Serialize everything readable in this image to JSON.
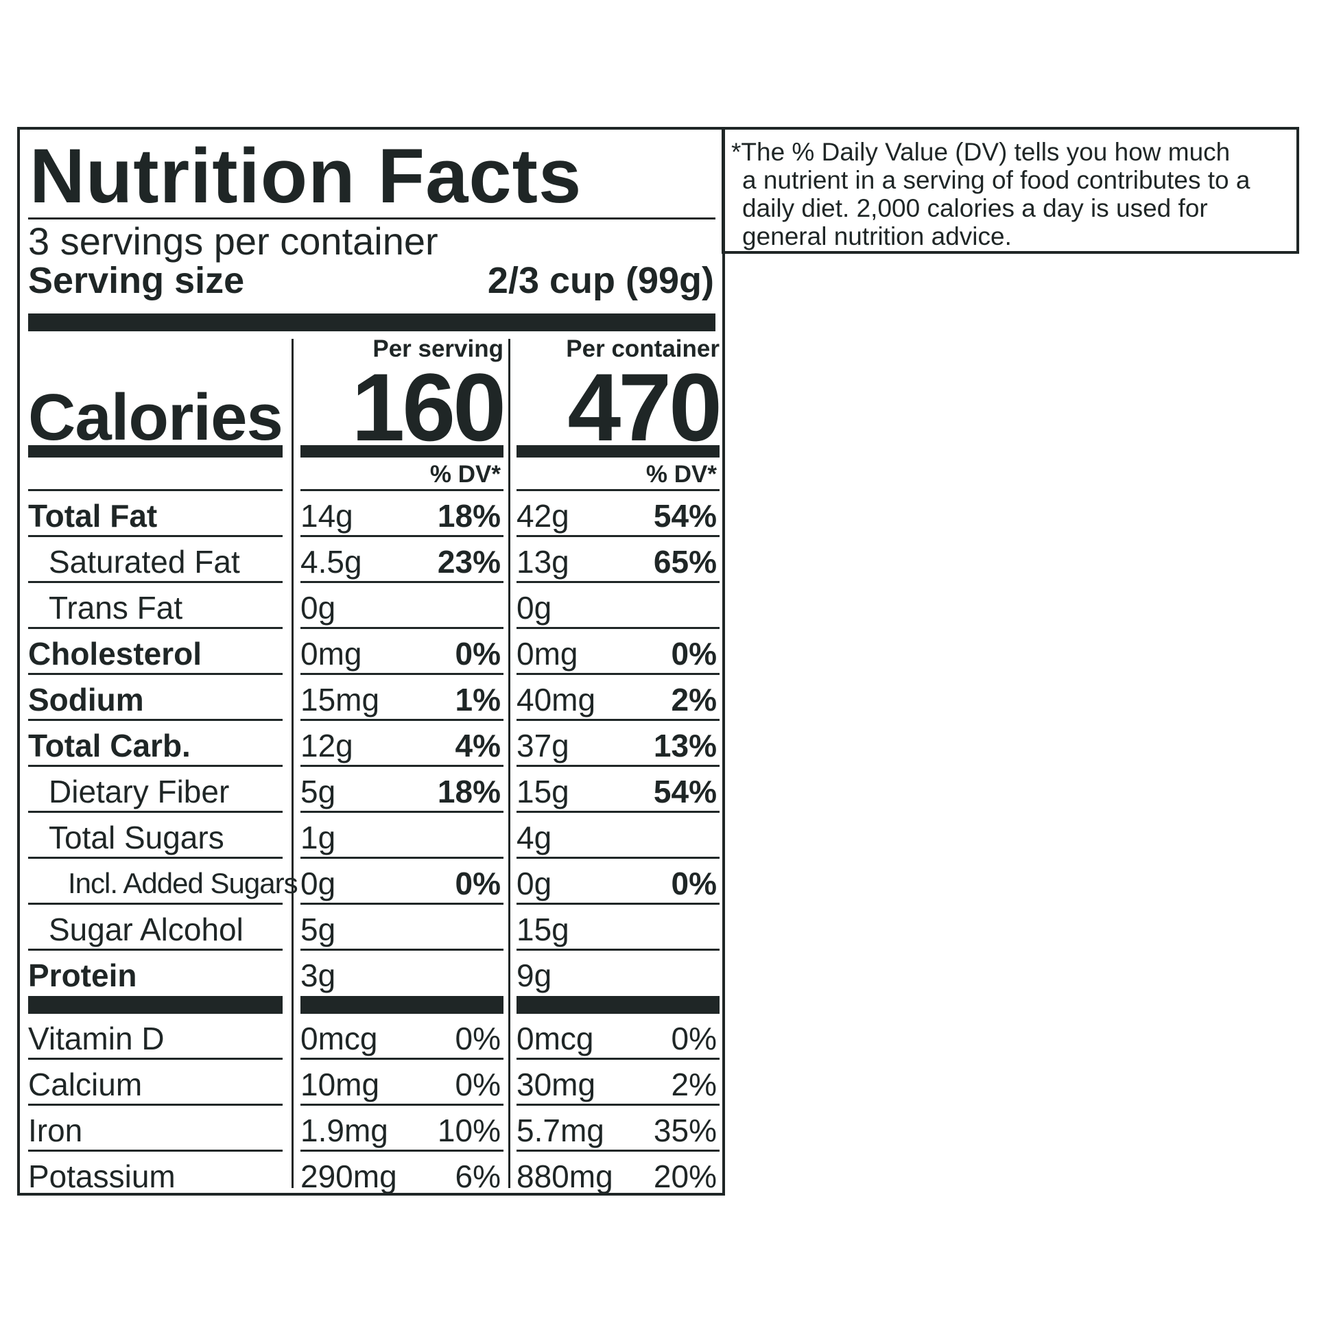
{
  "label": {
    "title": "Nutrition Facts",
    "servings_per_container": "3 servings per container",
    "serving_size_label": "Serving size",
    "serving_size_value": "2/3 cup (99g)",
    "calories_label": "Calories",
    "per_serving_header": "Per serving",
    "per_container_header": "Per container",
    "calories_per_serving": "160",
    "calories_per_container": "470",
    "dv_header": "% DV*"
  },
  "nutrients": [
    {
      "name": "Total Fat",
      "bold": true,
      "indent": 0,
      "s_amt": "14g",
      "s_dv": "18%",
      "c_amt": "42g",
      "c_dv": "54%"
    },
    {
      "name": "Saturated Fat",
      "bold": false,
      "indent": 1,
      "s_amt": "4.5g",
      "s_dv": "23%",
      "c_amt": "13g",
      "c_dv": "65%"
    },
    {
      "name": "Trans Fat",
      "bold": false,
      "indent": 1,
      "s_amt": "0g",
      "s_dv": "",
      "c_amt": "0g",
      "c_dv": ""
    },
    {
      "name": "Cholesterol",
      "bold": true,
      "indent": 0,
      "s_amt": "0mg",
      "s_dv": "0%",
      "c_amt": "0mg",
      "c_dv": "0%"
    },
    {
      "name": "Sodium",
      "bold": true,
      "indent": 0,
      "s_amt": "15mg",
      "s_dv": "1%",
      "c_amt": "40mg",
      "c_dv": "2%"
    },
    {
      "name": "Total Carb.",
      "bold": true,
      "indent": 0,
      "s_amt": "12g",
      "s_dv": "4%",
      "c_amt": "37g",
      "c_dv": "13%"
    },
    {
      "name": "Dietary Fiber",
      "bold": false,
      "indent": 1,
      "s_amt": "5g",
      "s_dv": "18%",
      "c_amt": "15g",
      "c_dv": "54%"
    },
    {
      "name": "Total Sugars",
      "bold": false,
      "indent": 1,
      "s_amt": "1g",
      "s_dv": "",
      "c_amt": "4g",
      "c_dv": ""
    },
    {
      "name": "Incl. Added Sugars",
      "bold": false,
      "indent": 2,
      "s_amt": "0g",
      "s_dv": "0%",
      "c_amt": "0g",
      "c_dv": "0%"
    },
    {
      "name": "Sugar Alcohol",
      "bold": false,
      "indent": 1,
      "s_amt": "5g",
      "s_dv": "",
      "c_amt": "15g",
      "c_dv": ""
    },
    {
      "name": "Protein",
      "bold": true,
      "indent": 0,
      "s_amt": "3g",
      "s_dv": "",
      "c_amt": "9g",
      "c_dv": ""
    }
  ],
  "vitamins": [
    {
      "name": "Vitamin D",
      "s_amt": "0mcg",
      "s_dv": "0%",
      "c_amt": "0mcg",
      "c_dv": "0%"
    },
    {
      "name": "Calcium",
      "s_amt": "10mg",
      "s_dv": "0%",
      "c_amt": "30mg",
      "c_dv": "2%"
    },
    {
      "name": "Iron",
      "s_amt": "1.9mg",
      "s_dv": "10%",
      "c_amt": "5.7mg",
      "c_dv": "35%"
    },
    {
      "name": "Potassium",
      "s_amt": "290mg",
      "s_dv": "6%",
      "c_amt": "880mg",
      "c_dv": "20%"
    }
  ],
  "footnote": {
    "first_line": "*The % Daily Value (DV) tells you how much",
    "body": "a nutrient in a serving of food contributes to a daily diet. 2,000 calories a day is used for general nutrition advice."
  }
}
